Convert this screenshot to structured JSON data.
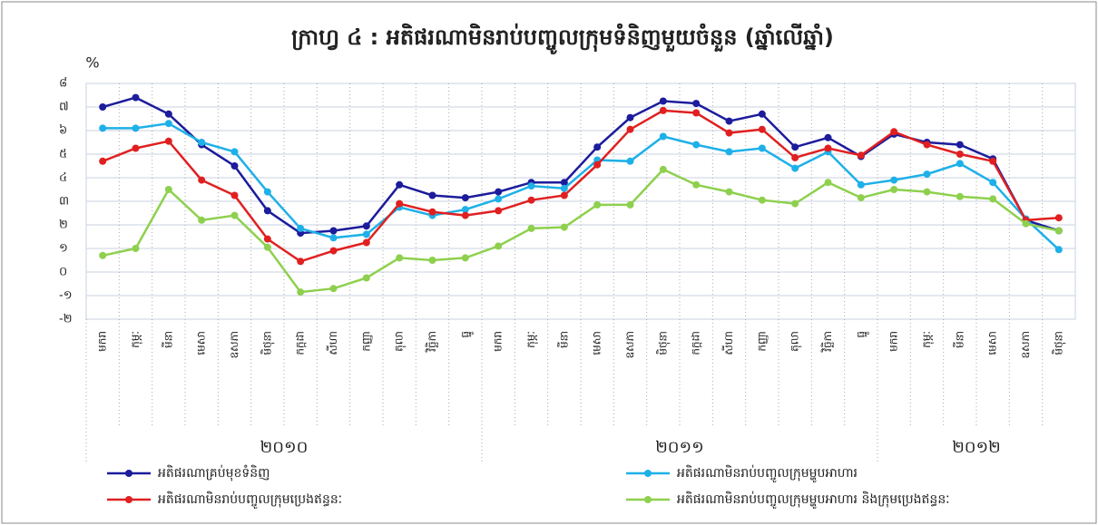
{
  "chart_data": {
    "type": "line",
    "title": "ក្រាហ្វ ៤ : អតិផរណាមិនរាប់បញ្ចូលក្រុមទំនិញមួយចំនួន (ឆ្នាំលើឆ្នាំ)",
    "y_label": "%",
    "categories": [
      "មករា",
      "កុម្ភៈ",
      "មីនា",
      "មេសា",
      "ឧសភា",
      "មិថុនា",
      "កក្កដា",
      "សីហា",
      "កញ្ញា",
      "តុលា",
      "វិច្ឆិកា",
      "ធ្នូ",
      "មករា",
      "កុម្ភៈ",
      "មីនា",
      "មេសា",
      "ឧសភា",
      "មិថុនា",
      "កក្កដា",
      "សីហា",
      "កញ្ញា",
      "តុលា",
      "វិច្ឆិកា",
      "ធ្នូ",
      "មករា",
      "កុម្ភៈ",
      "មីនា",
      "មេសា",
      "ឧសភា",
      "មិថុនា"
    ],
    "year_labels": [
      "២០១០",
      "២០១១",
      "២០១២"
    ],
    "ylim": [
      -2,
      8
    ],
    "yticks": [
      {
        "value": -2,
        "label": "-២"
      },
      {
        "value": -1,
        "label": "-១"
      },
      {
        "value": 0,
        "label": "០"
      },
      {
        "value": 1,
        "label": "១"
      },
      {
        "value": 2,
        "label": "២"
      },
      {
        "value": 3,
        "label": "៣"
      },
      {
        "value": 4,
        "label": "៤"
      },
      {
        "value": 5,
        "label": "៥"
      },
      {
        "value": 6,
        "label": "៦"
      },
      {
        "value": 7,
        "label": "៧"
      },
      {
        "value": 8,
        "label": "៨"
      }
    ],
    "grid": true,
    "series": [
      {
        "name": "អតិផរណាគ្រប់មុខទំនិញ",
        "color": "#1c1c9c",
        "values": [
          7.0,
          7.4,
          6.7,
          5.4,
          4.5,
          2.6,
          1.65,
          1.75,
          1.95,
          3.7,
          3.25,
          3.15,
          3.4,
          3.8,
          3.8,
          5.3,
          6.55,
          7.25,
          7.15,
          6.4,
          6.7,
          5.3,
          5.7,
          4.9,
          5.85,
          5.5,
          5.4,
          4.8,
          2.2,
          1.75
        ]
      },
      {
        "name": "អតិផរណាមិនរាប់បញ្ចូលក្រុមម្ហូបអាហារ",
        "color": "#1eb0e8",
        "values": [
          6.1,
          6.1,
          6.3,
          5.5,
          5.1,
          3.4,
          1.85,
          1.45,
          1.6,
          2.75,
          2.4,
          2.65,
          3.1,
          3.65,
          3.55,
          4.75,
          4.7,
          5.75,
          5.4,
          5.1,
          5.25,
          4.4,
          5.1,
          3.7,
          3.9,
          4.15,
          4.6,
          3.8,
          2.25,
          0.95
        ]
      },
      {
        "name": "អតិផរណាមិនរាប់បញ្ចូលក្រុមប្រេងឥន្ធនៈ",
        "color": "#e02020",
        "values": [
          4.7,
          5.25,
          5.55,
          3.9,
          3.25,
          1.4,
          0.45,
          0.9,
          1.25,
          2.9,
          2.55,
          2.4,
          2.6,
          3.05,
          3.25,
          4.55,
          6.05,
          6.85,
          6.75,
          5.9,
          6.05,
          4.85,
          5.25,
          4.95,
          5.95,
          5.4,
          5.0,
          4.7,
          2.2,
          2.3
        ]
      },
      {
        "name": "អតិផរណាមិនរាប់បញ្ចូលក្រុមម្ហូបអាហារ និងក្រុមប្រេងឥន្ធនៈ",
        "color": "#8ed04e",
        "values": [
          0.7,
          1.0,
          3.5,
          2.2,
          2.4,
          1.05,
          -0.85,
          -0.7,
          -0.25,
          0.6,
          0.5,
          0.6,
          1.1,
          1.85,
          1.9,
          2.85,
          2.85,
          4.35,
          3.7,
          3.4,
          3.05,
          2.9,
          3.8,
          3.15,
          3.5,
          3.4,
          3.2,
          3.1,
          2.05,
          1.75
        ]
      }
    ]
  }
}
